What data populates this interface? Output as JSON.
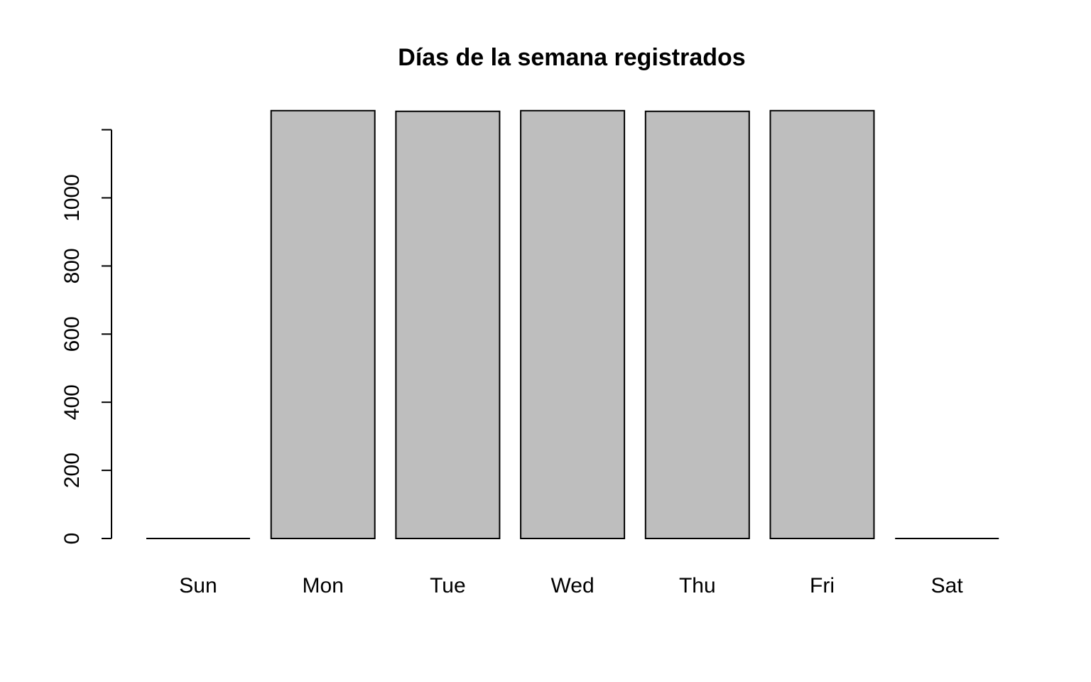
{
  "chart_data": {
    "type": "bar",
    "title": "Días de la semana registrados",
    "xlabel": "",
    "ylabel": "",
    "categories": [
      "Sun",
      "Mon",
      "Tue",
      "Wed",
      "Thu",
      "Fri",
      "Sat"
    ],
    "values": [
      0,
      1256,
      1254,
      1256,
      1254,
      1256,
      0
    ],
    "ylim": [
      0,
      1256
    ],
    "y_ticks": [
      0,
      200,
      400,
      600,
      800,
      1000,
      1200
    ],
    "y_tick_labels": [
      "0",
      "200",
      "400",
      "600",
      "800",
      "1000",
      ""
    ],
    "bar_color": "#BEBEBE",
    "grid": false,
    "legend": "none"
  }
}
